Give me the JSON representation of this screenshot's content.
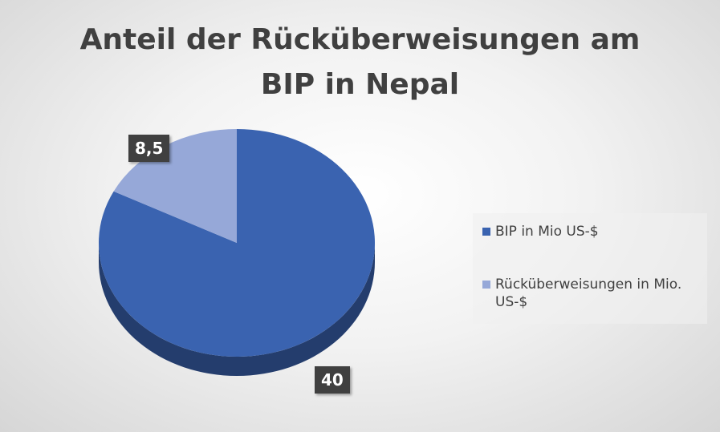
{
  "chart_data": {
    "type": "pie",
    "title_lines": [
      "Anteil der Rücküberweisungen am",
      "BIP in Nepal"
    ],
    "series": [
      {
        "name": "BIP in Mio US-$",
        "value": 40,
        "label": "40",
        "color": "#3a63b0"
      },
      {
        "name": "Rücküberweisungen in Mio. US-$",
        "value": 8.5,
        "label": "8,5",
        "color": "#96a8d8"
      }
    ],
    "legend_position": "right",
    "style": "3d"
  }
}
